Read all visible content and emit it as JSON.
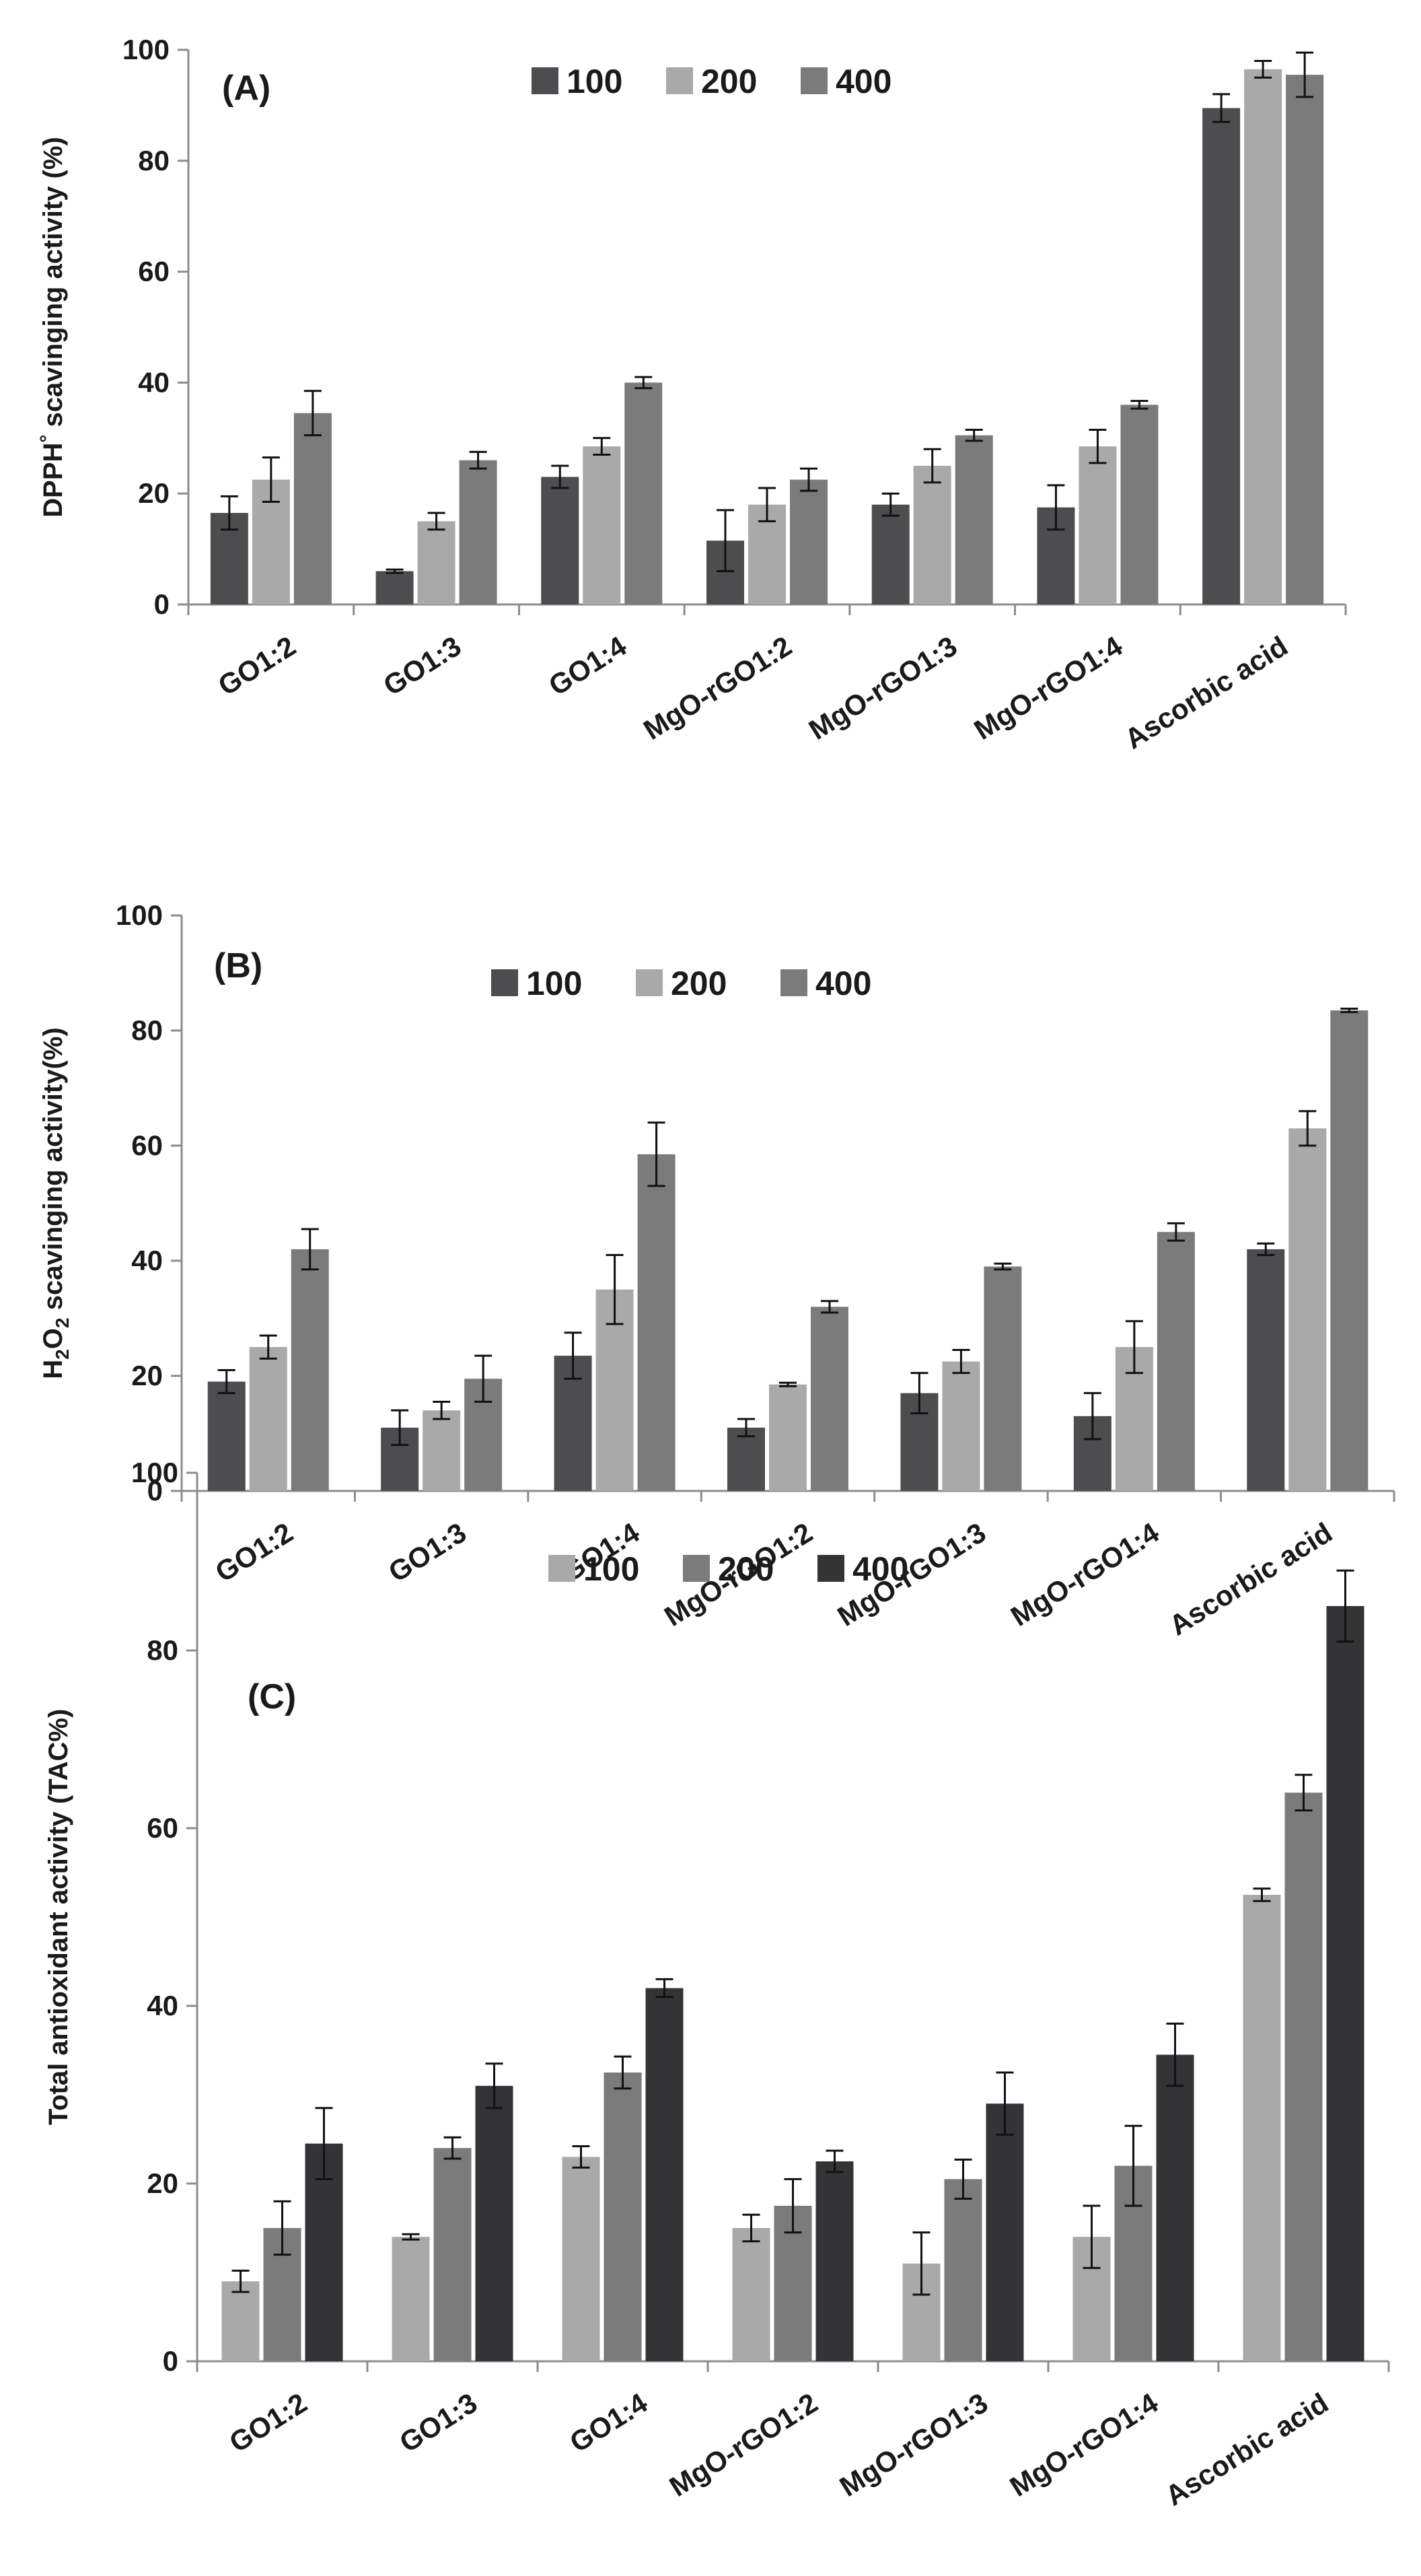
{
  "chart_data": [
    {
      "type": "bar",
      "panel_label": "(A)",
      "ylabel_parts": [
        "DPPH",
        "°",
        " scaving",
        "ing activity (%)"
      ],
      "ylabel_text": "DPPH° scavinging activity (%)",
      "ylim": [
        0,
        100
      ],
      "yticks": [
        "0",
        "20",
        "40",
        "60",
        "80",
        "100"
      ],
      "categories": [
        "GO1:2",
        "GO1:3",
        "GO1:4",
        "MgO-rGO1:2",
        "MgO-rGO1:3",
        "MgO-rGO1:4",
        "Ascorbic acid"
      ],
      "series": [
        {
          "name": "100",
          "color": "#4d4d4f",
          "values": [
            16.5,
            6,
            23,
            11.5,
            18,
            17.5,
            89.5
          ],
          "errors": [
            3,
            0.3,
            2,
            5.5,
            2,
            4,
            2.5
          ]
        },
        {
          "name": "200",
          "color": "#a9a9a9",
          "values": [
            22.5,
            15,
            28.5,
            18,
            25,
            28.5,
            96.5
          ],
          "errors": [
            4,
            1.5,
            1.5,
            3,
            3,
            3,
            1.5
          ]
        },
        {
          "name": "400",
          "color": "#7b7b7b",
          "values": [
            34.5,
            26,
            40,
            22.5,
            30.5,
            36,
            95.5
          ],
          "errors": [
            4,
            1.5,
            1,
            2,
            1,
            0.7,
            4
          ]
        }
      ],
      "legend_position": "top-center",
      "grid": false
    },
    {
      "type": "bar",
      "panel_label": "(B)",
      "ylabel_parts": [
        "H",
        "2",
        "O",
        "2",
        " scavinging activity(%)"
      ],
      "ylabel_text": "H2O2 scavinging activity(%)",
      "ylim": [
        0,
        100
      ],
      "yticks": [
        "0",
        "20",
        "40",
        "60",
        "80",
        "100"
      ],
      "categories": [
        "GO1:2",
        "GO1:3",
        "GO1:4",
        "MgO-rGO1:2",
        "MgO-rGO1:3",
        "MgO-rGO1:4",
        "Ascorbic acid"
      ],
      "series": [
        {
          "name": "100",
          "color": "#4d4d4f",
          "values": [
            19,
            11,
            23.5,
            11,
            17,
            13,
            42
          ],
          "errors": [
            2,
            3,
            4,
            1.5,
            3.5,
            4,
            1
          ]
        },
        {
          "name": "200",
          "color": "#a9a9a9",
          "values": [
            25,
            14,
            35,
            18.5,
            22.5,
            25,
            63
          ],
          "errors": [
            2,
            1.5,
            6,
            0.3,
            2,
            4.5,
            3
          ]
        },
        {
          "name": "400",
          "color": "#7b7b7b",
          "values": [
            42,
            19.5,
            58.5,
            32,
            39,
            45,
            83.5
          ],
          "errors": [
            3.5,
            4,
            5.5,
            1,
            0.5,
            1.5,
            0.3
          ]
        }
      ],
      "legend_position": "top-center",
      "grid": false
    },
    {
      "type": "bar",
      "panel_label": "(C)",
      "ylabel_parts": [
        "Total antioxidant activity (TAC%)"
      ],
      "ylabel_text": "Total antioxidant activity (TAC%)",
      "ylim": [
        0,
        100
      ],
      "yticks": [
        "0",
        "20",
        "40",
        "60",
        "80",
        "100"
      ],
      "categories": [
        "GO1:2",
        "GO1:3",
        "GO1:4",
        "MgO-rGO1:2",
        "MgO-rGO1:3",
        "MgO-rGO1:4",
        "Ascorbic acid"
      ],
      "series": [
        {
          "name": "100",
          "color": "#a9a9a9",
          "values": [
            9,
            14,
            23,
            15,
            11,
            14,
            52.5
          ],
          "errors": [
            1.2,
            0.3,
            1.2,
            1.5,
            3.5,
            3.5,
            0.7
          ]
        },
        {
          "name": "200",
          "color": "#7b7b7b",
          "values": [
            15,
            24,
            32.5,
            17.5,
            20.5,
            22,
            64
          ],
          "errors": [
            3,
            1.2,
            1.8,
            3,
            2.2,
            4.5,
            2
          ]
        },
        {
          "name": "400",
          "color": "#343436",
          "values": [
            24.5,
            31,
            42,
            22.5,
            29,
            34.5,
            85
          ],
          "errors": [
            4,
            2.5,
            1,
            1.2,
            3.5,
            3.5,
            4
          ]
        }
      ],
      "legend_position": "top-center",
      "grid": false
    }
  ]
}
